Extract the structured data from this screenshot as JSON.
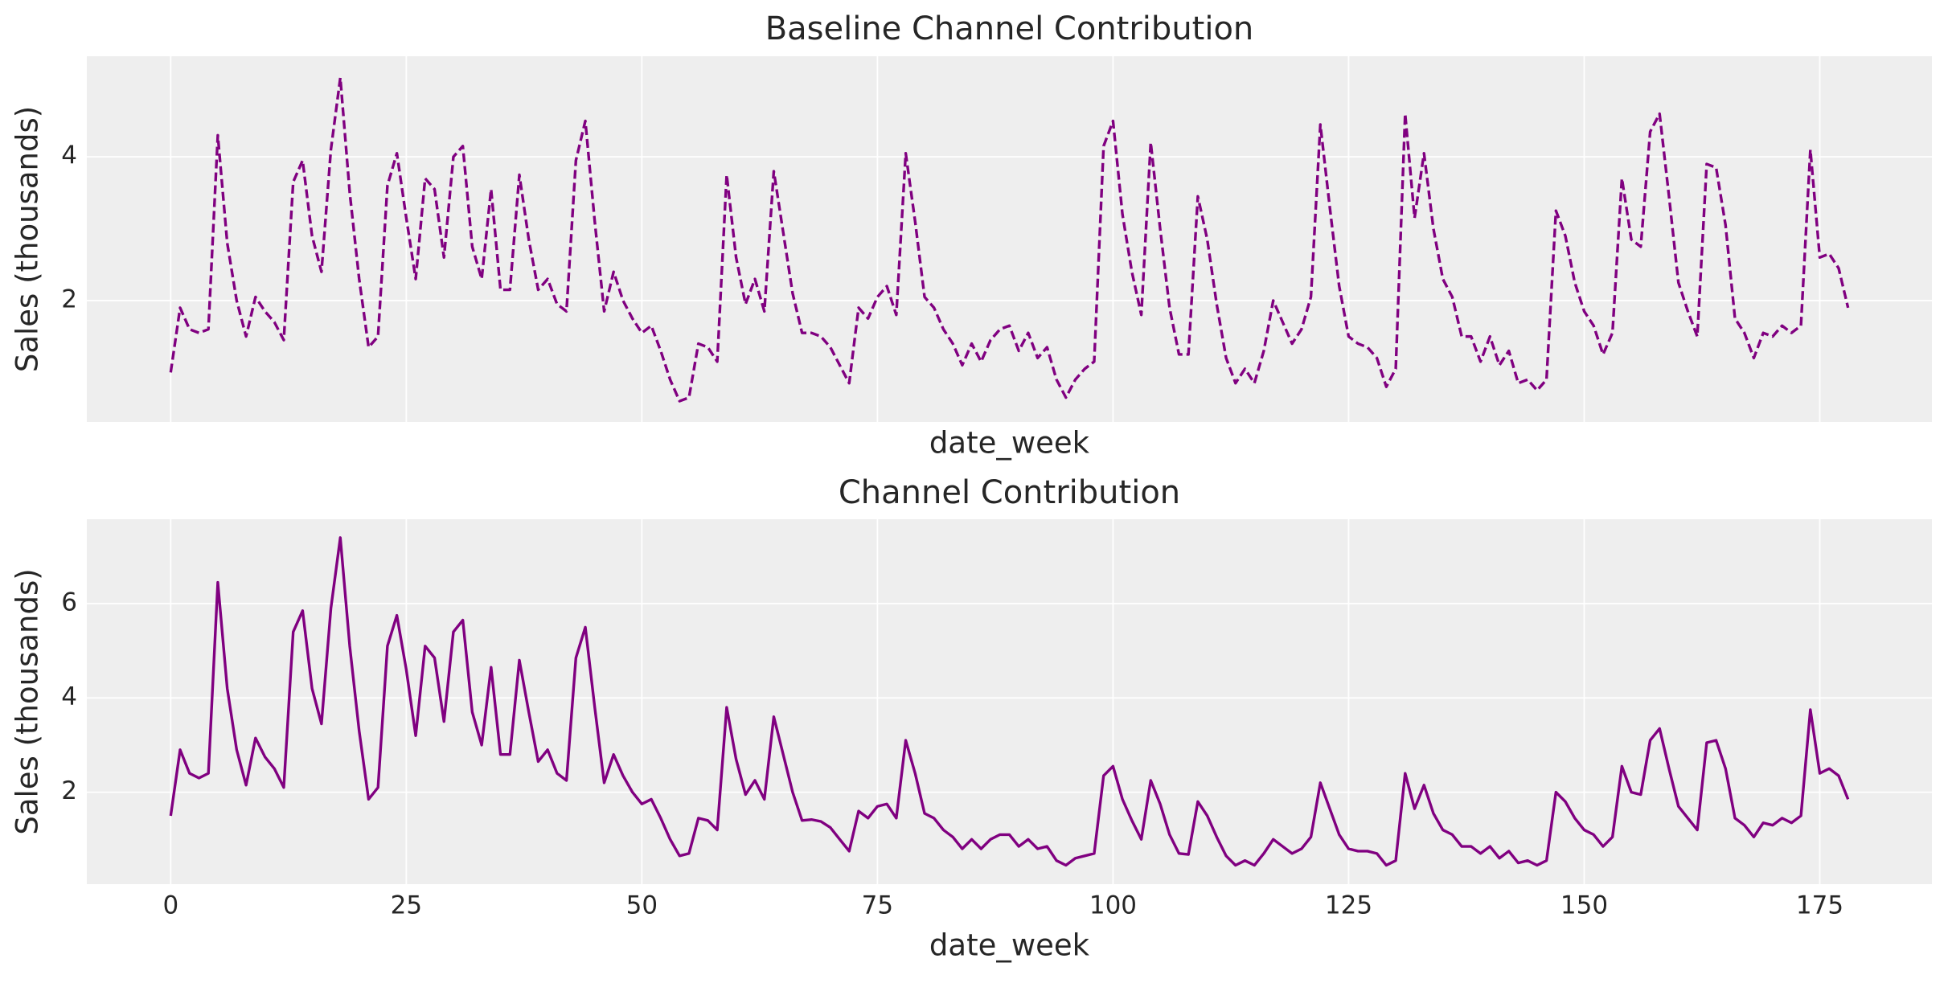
{
  "chart_data": [
    {
      "type": "line",
      "title": "Baseline Channel Contribution",
      "x_label": "date_week",
      "y_label": "Sales (thousands)",
      "x": [
        0,
        1,
        2,
        3,
        4,
        5,
        6,
        7,
        8,
        9,
        10,
        11,
        12,
        13,
        14,
        15,
        16,
        17,
        18,
        19,
        20,
        21,
        22,
        23,
        24,
        25,
        26,
        27,
        28,
        29,
        30,
        31,
        32,
        33,
        34,
        35,
        36,
        37,
        38,
        39,
        40,
        41,
        42,
        43,
        44,
        45,
        46,
        47,
        48,
        49,
        50,
        51,
        52,
        53,
        54,
        55,
        56,
        57,
        58,
        59,
        60,
        61,
        62,
        63,
        64,
        65,
        66,
        67,
        68,
        69,
        70,
        71,
        72,
        73,
        74,
        75,
        76,
        77,
        78,
        79,
        80,
        81,
        82,
        83,
        84,
        85,
        86,
        87,
        88,
        89,
        90,
        91,
        92,
        93,
        94,
        95,
        96,
        97,
        98,
        99,
        100,
        101,
        102,
        103,
        104,
        105,
        106,
        107,
        108,
        109,
        110,
        111,
        112,
        113,
        114,
        115,
        116,
        117,
        118,
        119,
        120,
        121,
        122,
        123,
        124,
        125,
        126,
        127,
        128,
        129,
        130,
        131,
        132,
        133,
        134,
        135,
        136,
        137,
        138,
        139,
        140,
        141,
        142,
        143,
        144,
        145,
        146,
        147,
        148,
        149,
        150,
        151,
        152,
        153,
        154,
        155,
        156,
        157,
        158,
        159,
        160,
        161,
        162,
        163,
        164,
        165,
        166,
        167,
        168,
        169,
        170,
        171,
        172,
        173,
        174,
        175,
        176,
        177,
        178
      ],
      "series": [
        {
          "color": "purple",
          "linestyle": "dashed",
          "values": [
            1.0,
            1.9,
            1.6,
            1.55,
            1.6,
            4.3,
            2.8,
            2.0,
            1.5,
            2.05,
            1.85,
            1.7,
            1.45,
            3.65,
            3.95,
            2.9,
            2.4,
            4.1,
            5.1,
            3.5,
            2.3,
            1.35,
            1.5,
            3.6,
            4.05,
            3.15,
            2.3,
            3.7,
            3.55,
            2.6,
            4.0,
            4.15,
            2.75,
            2.3,
            3.55,
            2.15,
            2.15,
            3.75,
            2.85,
            2.15,
            2.3,
            1.95,
            1.85,
            3.95,
            4.5,
            3.1,
            1.85,
            2.4,
            2.0,
            1.75,
            1.55,
            1.65,
            1.3,
            0.9,
            0.6,
            0.65,
            1.4,
            1.35,
            1.15,
            3.75,
            2.6,
            1.95,
            2.3,
            1.85,
            3.8,
            2.95,
            2.1,
            1.55,
            1.55,
            1.5,
            1.35,
            1.1,
            0.85,
            1.9,
            1.75,
            2.05,
            2.2,
            1.8,
            4.05,
            3.1,
            2.05,
            1.9,
            1.6,
            1.4,
            1.1,
            1.4,
            1.15,
            1.45,
            1.6,
            1.65,
            1.3,
            1.55,
            1.2,
            1.35,
            0.9,
            0.65,
            0.9,
            1.05,
            1.15,
            4.15,
            4.5,
            3.2,
            2.4,
            1.8,
            4.2,
            3.0,
            1.9,
            1.25,
            1.25,
            3.45,
            2.85,
            1.95,
            1.2,
            0.85,
            1.05,
            0.85,
            1.3,
            2.0,
            1.7,
            1.4,
            1.6,
            2.05,
            4.45,
            3.3,
            2.2,
            1.5,
            1.4,
            1.35,
            1.2,
            0.8,
            1.05,
            4.6,
            3.15,
            4.05,
            3.0,
            2.3,
            2.05,
            1.5,
            1.5,
            1.15,
            1.5,
            1.1,
            1.3,
            0.85,
            0.9,
            0.75,
            0.9,
            3.25,
            2.9,
            2.25,
            1.85,
            1.65,
            1.25,
            1.55,
            3.7,
            2.85,
            2.75,
            4.35,
            4.6,
            3.45,
            2.25,
            1.85,
            1.5,
            3.9,
            3.85,
            3.05,
            1.75,
            1.55,
            1.2,
            1.55,
            1.5,
            1.65,
            1.55,
            1.65,
            4.1,
            2.6,
            2.65,
            2.45,
            1.9
          ]
        }
      ],
      "xlim": [
        -8.9,
        186.9
      ],
      "xticks": [
        0,
        25,
        50,
        75,
        100,
        125,
        150,
        175
      ],
      "show_xtick_labels": false,
      "ylim": [
        0.31,
        5.4
      ],
      "yticks": [
        2,
        4
      ],
      "grid": true
    },
    {
      "type": "line",
      "title": "Channel Contribution",
      "x_label": "date_week",
      "y_label": "Sales (thousands)",
      "x": [
        0,
        1,
        2,
        3,
        4,
        5,
        6,
        7,
        8,
        9,
        10,
        11,
        12,
        13,
        14,
        15,
        16,
        17,
        18,
        19,
        20,
        21,
        22,
        23,
        24,
        25,
        26,
        27,
        28,
        29,
        30,
        31,
        32,
        33,
        34,
        35,
        36,
        37,
        38,
        39,
        40,
        41,
        42,
        43,
        44,
        45,
        46,
        47,
        48,
        49,
        50,
        51,
        52,
        53,
        54,
        55,
        56,
        57,
        58,
        59,
        60,
        61,
        62,
        63,
        64,
        65,
        66,
        67,
        68,
        69,
        70,
        71,
        72,
        73,
        74,
        75,
        76,
        77,
        78,
        79,
        80,
        81,
        82,
        83,
        84,
        85,
        86,
        87,
        88,
        89,
        90,
        91,
        92,
        93,
        94,
        95,
        96,
        97,
        98,
        99,
        100,
        101,
        102,
        103,
        104,
        105,
        106,
        107,
        108,
        109,
        110,
        111,
        112,
        113,
        114,
        115,
        116,
        117,
        118,
        119,
        120,
        121,
        122,
        123,
        124,
        125,
        126,
        127,
        128,
        129,
        130,
        131,
        132,
        133,
        134,
        135,
        136,
        137,
        138,
        139,
        140,
        141,
        142,
        143,
        144,
        145,
        146,
        147,
        148,
        149,
        150,
        151,
        152,
        153,
        154,
        155,
        156,
        157,
        158,
        159,
        160,
        161,
        162,
        163,
        164,
        165,
        166,
        167,
        168,
        169,
        170,
        171,
        172,
        173,
        174,
        175,
        176,
        177,
        178
      ],
      "series": [
        {
          "color": "purple",
          "linestyle": "solid",
          "values": [
            1.5,
            2.9,
            2.4,
            2.3,
            2.4,
            6.45,
            4.2,
            2.9,
            2.15,
            3.15,
            2.75,
            2.5,
            2.1,
            5.4,
            5.85,
            4.2,
            3.45,
            5.9,
            7.4,
            5.1,
            3.3,
            1.85,
            2.1,
            5.1,
            5.75,
            4.6,
            3.2,
            5.1,
            4.85,
            3.5,
            5.4,
            5.65,
            3.7,
            3.0,
            4.65,
            2.8,
            2.8,
            4.8,
            3.7,
            2.65,
            2.9,
            2.4,
            2.25,
            4.85,
            5.5,
            3.8,
            2.2,
            2.8,
            2.35,
            2.0,
            1.75,
            1.85,
            1.45,
            1.0,
            0.65,
            0.7,
            1.45,
            1.4,
            1.2,
            3.8,
            2.7,
            1.95,
            2.25,
            1.85,
            3.6,
            2.8,
            2.0,
            1.4,
            1.42,
            1.38,
            1.25,
            1.0,
            0.75,
            1.6,
            1.45,
            1.7,
            1.75,
            1.45,
            3.1,
            2.4,
            1.55,
            1.45,
            1.2,
            1.05,
            0.8,
            1.0,
            0.8,
            1.0,
            1.1,
            1.1,
            0.85,
            1.0,
            0.8,
            0.85,
            0.55,
            0.45,
            0.6,
            0.65,
            0.7,
            2.35,
            2.55,
            1.85,
            1.4,
            1.0,
            2.25,
            1.75,
            1.1,
            0.7,
            0.68,
            1.8,
            1.5,
            1.05,
            0.65,
            0.45,
            0.55,
            0.45,
            0.7,
            1.0,
            0.85,
            0.7,
            0.8,
            1.05,
            2.2,
            1.65,
            1.1,
            0.8,
            0.75,
            0.75,
            0.7,
            0.45,
            0.55,
            2.4,
            1.65,
            2.15,
            1.55,
            1.2,
            1.1,
            0.85,
            0.85,
            0.7,
            0.85,
            0.6,
            0.75,
            0.5,
            0.55,
            0.45,
            0.55,
            2.0,
            1.8,
            1.45,
            1.2,
            1.1,
            0.85,
            1.05,
            2.55,
            2.0,
            1.95,
            3.1,
            3.35,
            2.5,
            1.7,
            1.45,
            1.2,
            3.05,
            3.1,
            2.5,
            1.45,
            1.3,
            1.05,
            1.35,
            1.3,
            1.45,
            1.35,
            1.5,
            3.75,
            2.4,
            2.5,
            2.35,
            1.85
          ]
        }
      ],
      "xlim": [
        -8.9,
        186.9
      ],
      "xticks": [
        0,
        25,
        50,
        75,
        100,
        125,
        150,
        175
      ],
      "show_xtick_labels": true,
      "ylim": [
        0.05,
        7.79
      ],
      "yticks": [
        2,
        4,
        6
      ],
      "grid": true
    }
  ]
}
